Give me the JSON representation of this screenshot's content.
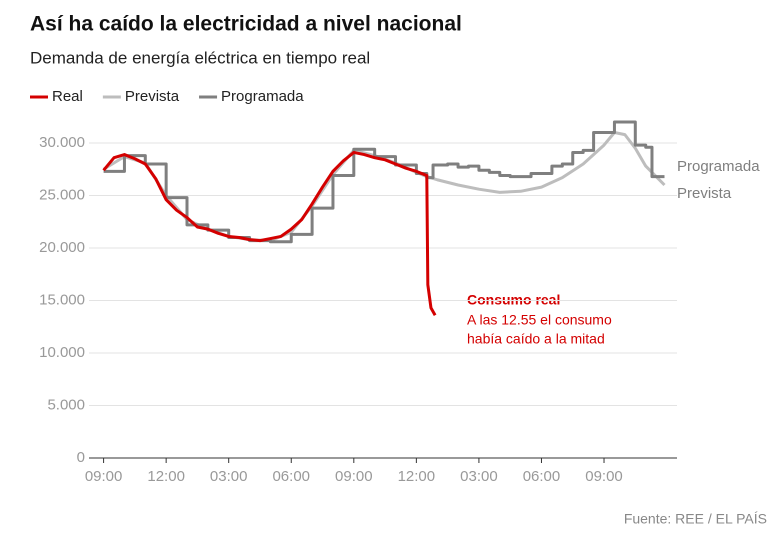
{
  "chart_data": {
    "type": "line",
    "title": "Así ha caído la electricidad a nivel nacional",
    "subtitle": "Demanda de energía eléctrica en tiempo real",
    "source": "Fuente: REE / EL PAÍS",
    "annotation": {
      "title": "Consumo real",
      "lines": [
        "A las 12.55 el consumo",
        "había caído a la mitad"
      ]
    },
    "series": [
      {
        "name": "Real",
        "color": "#d40000",
        "width": 3,
        "step": false,
        "x": [
          0,
          0.5,
          1,
          1.5,
          2,
          2.5,
          3,
          3.5,
          4,
          4.5,
          5,
          5.5,
          6,
          6.5,
          7,
          7.5,
          8,
          8.5,
          9,
          9.5,
          10,
          10.5,
          11,
          11.5,
          12,
          12.5,
          13,
          13.5,
          14,
          14.5,
          15,
          15.5,
          15.55,
          15.7,
          15.9
        ],
        "values": [
          27400,
          28600,
          28900,
          28500,
          28000,
          26600,
          24600,
          23600,
          22900,
          22000,
          21800,
          21400,
          21100,
          21000,
          20800,
          20700,
          20900,
          21100,
          21800,
          22700,
          24200,
          25800,
          27300,
          28300,
          29100,
          28900,
          28600,
          28400,
          28000,
          27600,
          27300,
          26900,
          16500,
          14300,
          13600
        ]
      },
      {
        "name": "Prevista",
        "color": "#bdbdbd",
        "width": 3,
        "step": false,
        "x": [
          0,
          1,
          2,
          3,
          4,
          5,
          6,
          7,
          8,
          9,
          10,
          11,
          12,
          13,
          14,
          15,
          15.5,
          16,
          17,
          18,
          19,
          20,
          21,
          22,
          23,
          24,
          24.5,
          25,
          25.5,
          26,
          26.5,
          26.9
        ],
        "values": [
          27500,
          28700,
          28100,
          25000,
          22700,
          21800,
          21100,
          20800,
          20700,
          21500,
          24000,
          27000,
          29300,
          28800,
          28100,
          27200,
          26800,
          26500,
          26000,
          25600,
          25300,
          25400,
          25800,
          26700,
          28000,
          29800,
          31000,
          30800,
          29500,
          27800,
          26800,
          26000
        ]
      },
      {
        "name": "Programada",
        "color": "#7f7f7f",
        "width": 3,
        "step": true,
        "x": [
          0,
          1,
          2,
          3,
          4,
          5,
          6,
          7,
          8,
          9,
          10,
          11,
          12,
          13,
          14,
          15,
          15.5,
          15.8,
          16.5,
          17,
          17.5,
          18,
          18.5,
          19,
          19.5,
          20,
          20.5,
          21,
          21.5,
          22,
          22.5,
          23,
          23.5,
          24,
          24.5,
          25,
          25.5,
          26,
          26.3,
          26.9
        ],
        "values": [
          27300,
          28800,
          28000,
          24800,
          22200,
          21700,
          21000,
          20700,
          20600,
          21300,
          23800,
          26900,
          29400,
          28700,
          27900,
          27100,
          26700,
          27900,
          28000,
          27700,
          27800,
          27400,
          27200,
          26900,
          26800,
          26800,
          27100,
          27100,
          27800,
          28000,
          29100,
          29300,
          31000,
          31000,
          32000,
          32000,
          29800,
          29600,
          26800,
          26800
        ]
      }
    ],
    "end_labels": [
      "Programada",
      "Prevista"
    ],
    "xlim": [
      -0.7,
      27.5
    ],
    "xticks": [
      {
        "value": 0,
        "label": "09:00"
      },
      {
        "value": 3,
        "label": "12:00"
      },
      {
        "value": 6,
        "label": "03:00"
      },
      {
        "value": 9,
        "label": "06:00"
      },
      {
        "value": 12,
        "label": "09:00"
      },
      {
        "value": 15,
        "label": "12:00"
      },
      {
        "value": 18,
        "label": "03:00"
      },
      {
        "value": 21,
        "label": "06:00"
      },
      {
        "value": 24,
        "label": "09:00"
      }
    ],
    "ylim": [
      0,
      32000
    ],
    "yticks": [
      0,
      {
        "value": 5000,
        "label": "5.000"
      },
      {
        "value": 10000,
        "label": "10.000"
      },
      {
        "value": 15000,
        "label": "15.000"
      },
      {
        "value": 20000,
        "label": "20.000"
      },
      {
        "value": 25000,
        "label": "25.000"
      },
      {
        "value": 30000,
        "label": "30.000"
      }
    ],
    "grid": true,
    "legend": "top-left"
  }
}
